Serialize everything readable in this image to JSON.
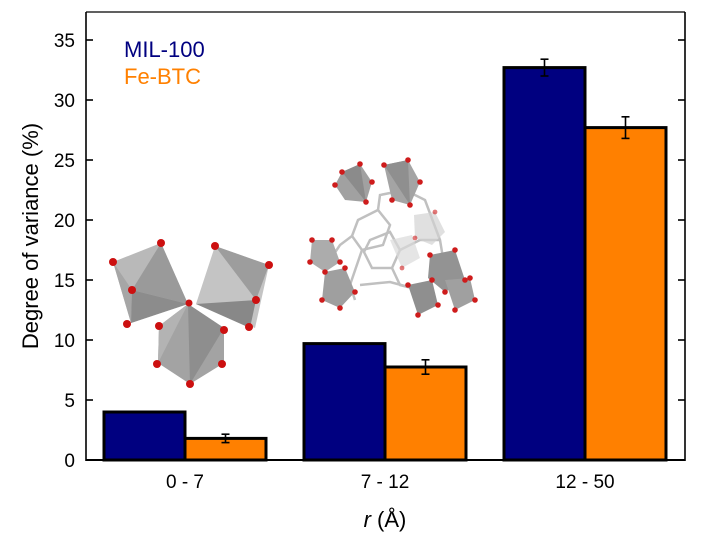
{
  "chart_data": {
    "type": "bar",
    "title": "",
    "xlabel_italic": "r",
    "xlabel_rest": " (Å)",
    "xlabel": "r (Å)",
    "ylabel": "Degree of variance (%)",
    "ylim": [
      0,
      37.5
    ],
    "yticks": [
      0,
      5,
      10,
      15,
      20,
      25,
      30,
      35
    ],
    "ytick_labels": [
      "0",
      "5",
      "10",
      "15",
      "20",
      "25",
      "30",
      "35"
    ],
    "grid": false,
    "legend_position": "top-left",
    "categories": [
      "0 - 7",
      "7 - 12",
      "12 - 50"
    ],
    "series": [
      {
        "name": "MIL-100",
        "color": "#000080",
        "values": [
          4.0,
          9.7,
          32.7
        ],
        "errors": [
          0,
          0,
          0.7
        ]
      },
      {
        "name": "Fe-BTC",
        "color": "#FF8000",
        "values": [
          1.8,
          7.75,
          27.7
        ],
        "errors": [
          0.35,
          0.6,
          0.9
        ]
      }
    ],
    "insets": [
      {
        "name": "MIL-100 trimer structure",
        "near_category": "0 - 7"
      },
      {
        "name": "Fe-BTC cage structure",
        "near_category": "7 - 12"
      }
    ]
  }
}
